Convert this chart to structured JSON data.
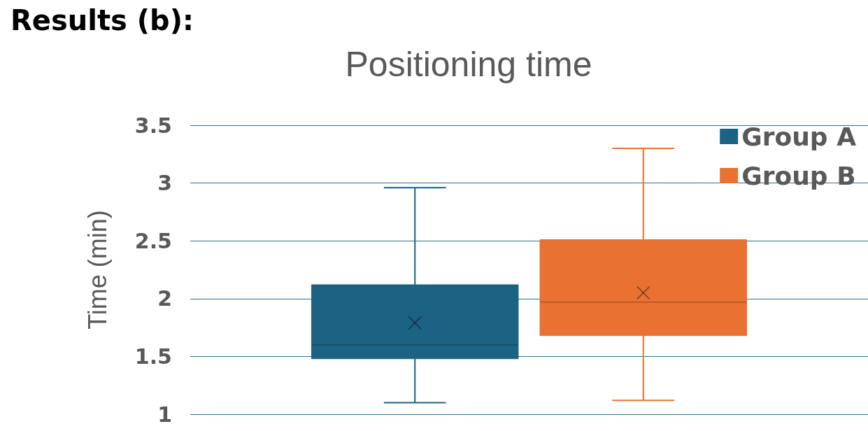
{
  "chart_data": {
    "type": "box",
    "title": "Results (b):",
    "subtitle": "Positioning time",
    "ylabel": "Time (min)",
    "categories": [
      null
    ],
    "series": [
      {
        "name": "Group A",
        "color": "#1b6283",
        "boxes": [
          {
            "low": 1.1,
            "q1": 1.48,
            "median": 1.6,
            "q3": 2.12,
            "high": 2.96,
            "mean": 1.79
          }
        ]
      },
      {
        "name": "Group B",
        "color": "#e97132",
        "boxes": [
          {
            "low": 1.12,
            "q1": 1.68,
            "median": 1.97,
            "q3": 2.51,
            "high": 3.3,
            "mean": 2.05
          }
        ]
      }
    ],
    "ylim": [
      1,
      3.5
    ],
    "yticks": [
      1,
      1.5,
      2,
      2.5,
      3,
      3.5
    ],
    "grid": "y",
    "legend": "top right"
  }
}
